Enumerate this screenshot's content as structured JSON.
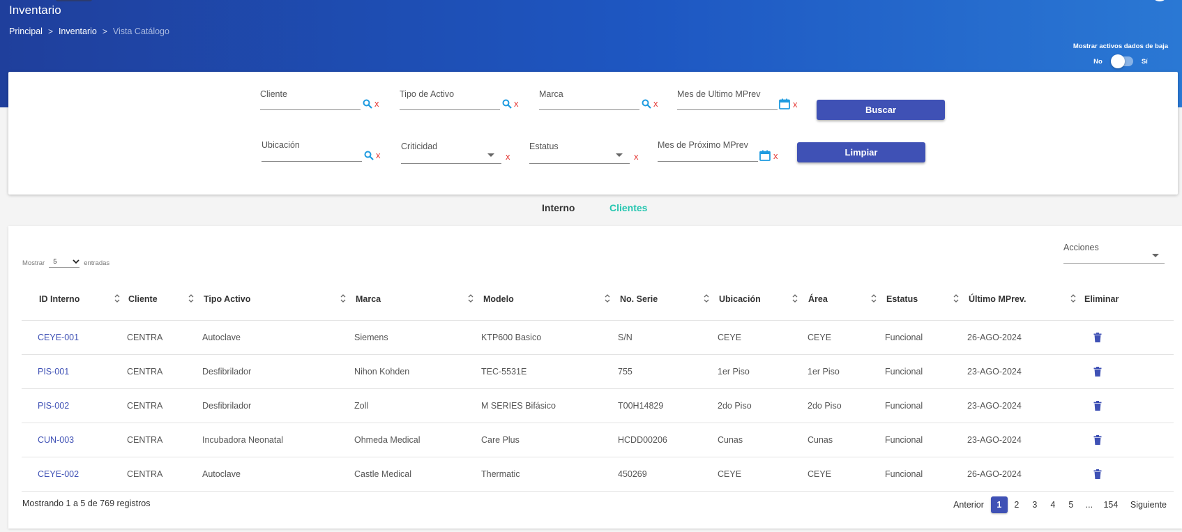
{
  "header": {
    "title": "Inventario",
    "breadcrumb": [
      "Principal",
      "Inventario",
      "Vista Catálogo"
    ],
    "toggle": {
      "label": "Mostrar activos dados de baja",
      "off": "No",
      "on": "Sí",
      "value": "No"
    }
  },
  "filters": {
    "cliente": {
      "label": "Cliente",
      "value": ""
    },
    "tipo_activo": {
      "label": "Tipo de Activo",
      "value": ""
    },
    "marca": {
      "label": "Marca",
      "value": ""
    },
    "mes_ultimo": {
      "label": "Mes de Ultimo MPrev",
      "value": ""
    },
    "ubicacion": {
      "label": "Ubicación",
      "value": ""
    },
    "criticidad": {
      "label": "Criticidad",
      "value": ""
    },
    "estatus": {
      "label": "Estatus",
      "value": ""
    },
    "mes_proximo": {
      "label": "Mes de Próximo MPrev",
      "value": ""
    },
    "clear_mark": "x",
    "buscar": "Buscar",
    "limpiar": "Limpiar"
  },
  "tabs": [
    {
      "label": "Interno",
      "active": false
    },
    {
      "label": "Clientes",
      "active": true
    }
  ],
  "table": {
    "show_prefix": "Mostrar",
    "show_value": "5",
    "show_suffix": "entradas",
    "actions_label": "Acciones",
    "columns": [
      "ID Interno",
      "Cliente",
      "Tipo Activo",
      "Marca",
      "Modelo",
      "No. Serie",
      "Ubicación",
      "Área",
      "Estatus",
      "Último MPrev.",
      "Eliminar"
    ],
    "rows": [
      [
        "CEYE-001",
        "CENTRA",
        "Autoclave",
        "Siemens",
        "KTP600 Basico",
        "S/N",
        "CEYE",
        "CEYE",
        "Funcional",
        "26-AGO-2024"
      ],
      [
        "PIS-001",
        "CENTRA",
        "Desfibrilador",
        "Nihon Kohden",
        "TEC-5531E",
        "755",
        "1er Piso",
        "1er Piso",
        "Funcional",
        "23-AGO-2024"
      ],
      [
        "PIS-002",
        "CENTRA",
        "Desfibrilador",
        "Zoll",
        "M SERIES Bifásico",
        "T00H14829",
        "2do Piso",
        "2do Piso",
        "Funcional",
        "23-AGO-2024"
      ],
      [
        "CUN-003",
        "CENTRA",
        "Incubadora Neonatal",
        "Ohmeda Medical",
        "Care Plus",
        "HCDD00206",
        "Cunas",
        "Cunas",
        "Funcional",
        "23-AGO-2024"
      ],
      [
        "CEYE-002",
        "CENTRA",
        "Autoclave",
        "Castle Medical",
        "Thermatic",
        "450269",
        "CEYE",
        "CEYE",
        "Funcional",
        "26-AGO-2024"
      ]
    ],
    "info": "Mostrando 1 a 5 de 769 registros",
    "pagination": {
      "prev": "Anterior",
      "pages": [
        "1",
        "2",
        "3",
        "4",
        "5",
        "...",
        "154"
      ],
      "active": "1",
      "next": "Siguiente"
    }
  },
  "colors": {
    "accent": "#3f51b5",
    "tab_active": "#26c6b0",
    "clear": "#e53935",
    "icon": "#1e9be0"
  }
}
